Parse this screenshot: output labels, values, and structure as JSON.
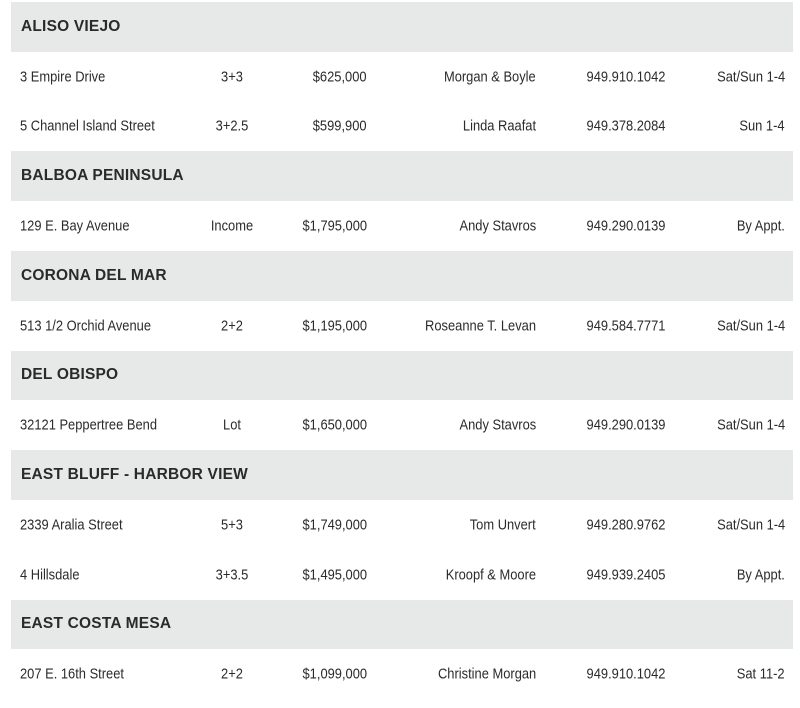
{
  "sections": [
    {
      "area": "ALISO VIEJO",
      "listings": [
        {
          "address": "3 Empire Drive",
          "beds_baths": "3+3",
          "price": "$625,000",
          "agent": "Morgan & Boyle",
          "phone": "949.910.1042",
          "hours": "Sat/Sun 1-4"
        },
        {
          "address": "5 Channel Island Street",
          "beds_baths": "3+2.5",
          "price": "$599,900",
          "agent": "Linda Raafat",
          "phone": "949.378.2084",
          "hours": "Sun 1-4"
        }
      ]
    },
    {
      "area": "BALBOA PENINSULA",
      "listings": [
        {
          "address": "129 E. Bay Avenue",
          "beds_baths": "Income",
          "price": "$1,795,000",
          "agent": "Andy Stavros",
          "phone": "949.290.0139",
          "hours": "By Appt."
        }
      ]
    },
    {
      "area": "CORONA DEL MAR",
      "listings": [
        {
          "address": "513 1/2 Orchid Avenue",
          "beds_baths": "2+2",
          "price": "$1,195,000",
          "agent": "Roseanne T. Levan",
          "phone": "949.584.7771",
          "hours": "Sat/Sun 1-4"
        }
      ]
    },
    {
      "area": "DEL OBISPO",
      "listings": [
        {
          "address": "32121 Peppertree Bend",
          "beds_baths": "Lot",
          "price": "$1,650,000",
          "agent": "Andy Stavros",
          "phone": "949.290.0139",
          "hours": "Sat/Sun 1-4"
        }
      ]
    },
    {
      "area": "EAST BLUFF - HARBOR VIEW",
      "listings": [
        {
          "address": "2339 Aralia Street",
          "beds_baths": "5+3",
          "price": "$1,749,000",
          "agent": "Tom Unvert",
          "phone": "949.280.9762",
          "hours": "Sat/Sun 1-4"
        },
        {
          "address": "4 Hillsdale",
          "beds_baths": "3+3.5",
          "price": "$1,495,000",
          "agent": "Kroopf & Moore",
          "phone": "949.939.2405",
          "hours": "By Appt."
        }
      ]
    },
    {
      "area": "EAST COSTA MESA",
      "listings": [
        {
          "address": "207 E. 16th Street",
          "beds_baths": "2+2",
          "price": "$1,099,000",
          "agent": "Christine Morgan",
          "phone": "949.910.1042",
          "hours": "Sat 11-2"
        }
      ]
    }
  ]
}
